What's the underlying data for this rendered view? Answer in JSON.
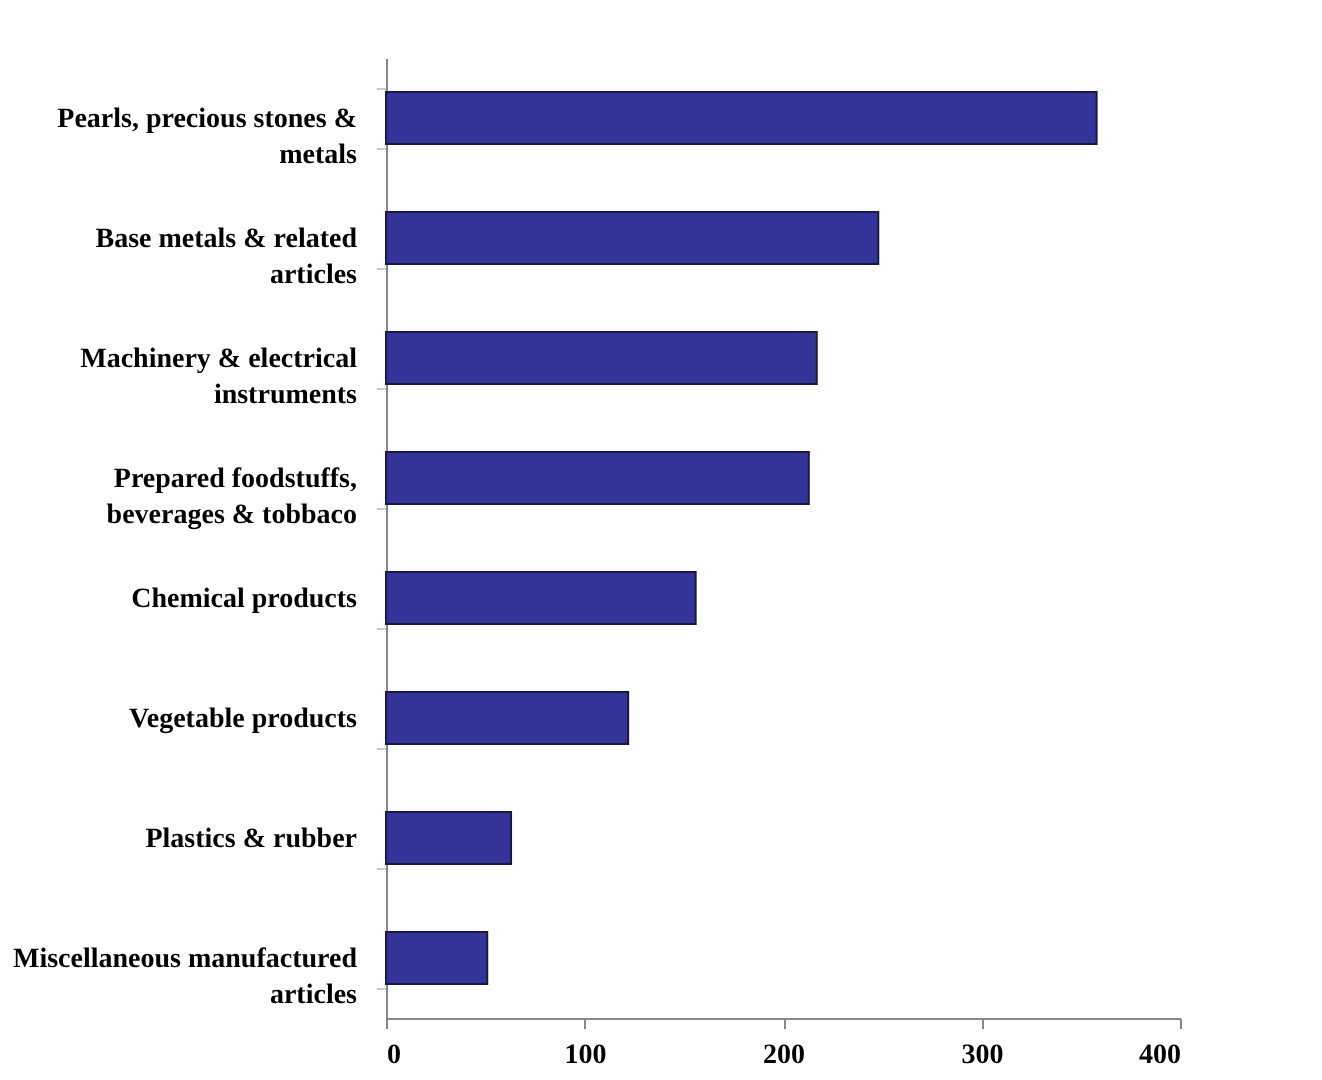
{
  "chart_data": {
    "type": "bar",
    "orientation": "horizontal",
    "categories": [
      "Pearls, precious stones & metals",
      "Base metals & related articles",
      "Machinery & electrical instruments",
      "Prepared foodstuffs, beverages & tobbaco",
      "Chemical products",
      "Vegetable products",
      "Plastics & rubber",
      "Miscellaneous manufactured articles"
    ],
    "values": [
      358,
      248,
      217,
      213,
      156,
      122,
      63,
      51
    ],
    "color": "#333399",
    "xlim": [
      0,
      400
    ],
    "xticks": [
      0,
      100,
      200,
      300,
      400
    ],
    "grid": false
  }
}
